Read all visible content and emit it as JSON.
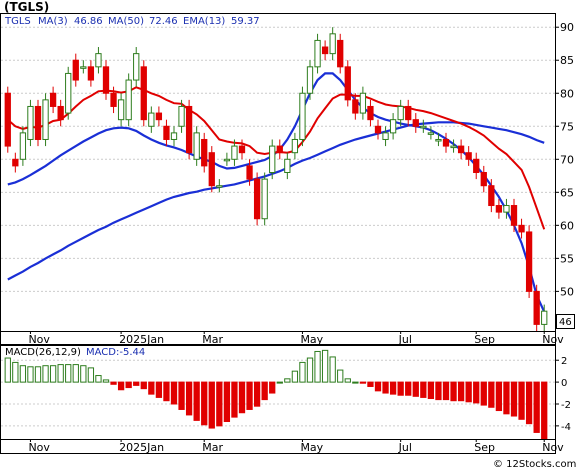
{
  "header": {
    "symbol_title": "(TGLS)",
    "legend_symbol": "TGLS",
    "legend_ma3": "MA(3)",
    "legend_ma3_val": "46.86",
    "legend_ma50": "MA(50)",
    "legend_ma50_val": "72.46",
    "legend_ema13": "EMA(13)",
    "legend_ema13_val": "59.37"
  },
  "macd_header": {
    "label": "MACD(26,12,9)",
    "value_label": "MACD:-5.44"
  },
  "watermark": "© 12Stocks.com",
  "colors": {
    "up": "#2e7d1e",
    "down": "#e00000",
    "ma_short": "#1a2fd6",
    "ma_long": "#1a2fd6",
    "ema": "#e00000",
    "grid": "#cccccc"
  },
  "chart_data": [
    {
      "type": "candlestick",
      "title": "(TGLS)",
      "x_ticks": [
        "Nov",
        "2025Jan",
        "Mar",
        "May",
        "Jul",
        "Sep",
        "Nov"
      ],
      "y_ticks": [
        50,
        55,
        60,
        65,
        70,
        75,
        80,
        85,
        90
      ],
      "ylim": [
        44,
        92
      ],
      "last_price_label": "46",
      "candles": [
        [
          80,
          72
        ],
        [
          70,
          69
        ],
        [
          70,
          74
        ],
        [
          73,
          78
        ],
        [
          78,
          73
        ],
        [
          73,
          79
        ],
        [
          80,
          78
        ],
        [
          78,
          76
        ],
        [
          77,
          83
        ],
        [
          85,
          82
        ],
        [
          84,
          84
        ],
        [
          84,
          82
        ],
        [
          84,
          86
        ],
        [
          84,
          80
        ],
        [
          80,
          78
        ],
        [
          76,
          79
        ],
        [
          76,
          82
        ],
        [
          82,
          86
        ],
        [
          84,
          76
        ],
        [
          75,
          77
        ],
        [
          77,
          76
        ],
        [
          75,
          73
        ],
        [
          73,
          74
        ],
        [
          75,
          78
        ],
        [
          78,
          71
        ],
        [
          70,
          74
        ],
        [
          73,
          69
        ],
        [
          71,
          66
        ],
        [
          66,
          66
        ],
        [
          70,
          70
        ],
        [
          70,
          72
        ],
        [
          72,
          71
        ],
        [
          69,
          67
        ],
        [
          67,
          61
        ],
        [
          61,
          67
        ],
        [
          68,
          72
        ],
        [
          72,
          71
        ],
        [
          68,
          70
        ],
        [
          71,
          73
        ],
        [
          73,
          80
        ],
        [
          80,
          84
        ],
        [
          84,
          88
        ],
        [
          87,
          86
        ],
        [
          86,
          89
        ],
        [
          88,
          84
        ],
        [
          84,
          79
        ],
        [
          79,
          77
        ],
        [
          77,
          80
        ],
        [
          78,
          76
        ],
        [
          75,
          74
        ],
        [
          73,
          74
        ],
        [
          74,
          76
        ],
        [
          76,
          78
        ],
        [
          78,
          76
        ],
        [
          76,
          75
        ],
        [
          75,
          75
        ],
        [
          74,
          74
        ],
        [
          73,
          73
        ],
        [
          73,
          72
        ],
        [
          72,
          72
        ],
        [
          72,
          71
        ],
        [
          71,
          70
        ],
        [
          70,
          68
        ],
        [
          68,
          66
        ],
        [
          66,
          63
        ],
        [
          63,
          62
        ],
        [
          62,
          63
        ],
        [
          63,
          60
        ],
        [
          60,
          59
        ],
        [
          59,
          50
        ],
        [
          50,
          45
        ],
        [
          45,
          47
        ]
      ],
      "ma_short": [
        66.2,
        66.5,
        67.0,
        67.6,
        68.3,
        69.0,
        69.8,
        70.6,
        71.3,
        72.0,
        72.7,
        73.3,
        73.9,
        74.4,
        74.7,
        74.8,
        74.7,
        74.3,
        73.6,
        73.0,
        72.5,
        72.1,
        71.8,
        71.4,
        70.9,
        70.4,
        70.0,
        69.6,
        69.0,
        68.6,
        68.7,
        69.0,
        69.3,
        69.6,
        69.9,
        70.5,
        71.5,
        73.0,
        75.0,
        77.5,
        80.0,
        82.0,
        83.0,
        83.0,
        82.0,
        80.5,
        79.0,
        77.8,
        77.0,
        76.4,
        76.0,
        75.7,
        75.4,
        75.2,
        75.0,
        74.8,
        74.4,
        73.8,
        73.1,
        72.3,
        71.4,
        70.3,
        69.0,
        67.6,
        66.0,
        64.3,
        62.3,
        60.0,
        57.3,
        53.7,
        49.4,
        46.9
      ],
      "ma_long": [
        51.8,
        52.4,
        53.0,
        53.7,
        54.3,
        55.0,
        55.6,
        56.2,
        56.9,
        57.5,
        58.1,
        58.7,
        59.3,
        59.8,
        60.4,
        60.9,
        61.4,
        61.9,
        62.4,
        62.9,
        63.4,
        63.9,
        64.3,
        64.6,
        64.9,
        65.1,
        65.4,
        65.6,
        65.8,
        66.0,
        66.2,
        66.5,
        66.8,
        67.1,
        67.4,
        67.8,
        68.2,
        68.7,
        69.3,
        69.8,
        70.2,
        70.7,
        71.2,
        71.7,
        72.2,
        72.6,
        73.0,
        73.3,
        73.6,
        73.9,
        74.2,
        74.5,
        74.8,
        75.1,
        75.3,
        75.4,
        75.5,
        75.6,
        75.6,
        75.6,
        75.5,
        75.4,
        75.2,
        75.0,
        74.8,
        74.6,
        74.4,
        74.1,
        73.8,
        73.4,
        72.9,
        72.5
      ],
      "ema": [
        76.0,
        75.0,
        74.6,
        74.9,
        74.8,
        75.2,
        75.8,
        76.0,
        76.9,
        78.0,
        79.0,
        79.6,
        80.3,
        80.4,
        80.3,
        80.1,
        80.3,
        80.9,
        80.5,
        80.0,
        79.6,
        79.0,
        78.5,
        78.4,
        77.5,
        76.8,
        75.8,
        74.4,
        73.0,
        72.7,
        72.5,
        72.4,
        72.0,
        71.0,
        70.8,
        71.0,
        71.1,
        71.0,
        71.3,
        72.6,
        74.2,
        76.2,
        77.7,
        79.2,
        79.8,
        79.8,
        79.6,
        79.6,
        79.2,
        78.7,
        78.3,
        78.1,
        78.0,
        77.8,
        77.5,
        77.3,
        77.0,
        76.6,
        76.2,
        75.8,
        75.4,
        74.9,
        74.3,
        73.6,
        72.6,
        71.6,
        70.8,
        69.6,
        68.4,
        65.8,
        62.6,
        59.4
      ]
    },
    {
      "type": "bar",
      "title": "MACD(26,12,9)",
      "x_ticks": [
        "Nov",
        "2025Jan",
        "Mar",
        "May",
        "Jul",
        "Sep",
        "Nov"
      ],
      "y_ticks": [
        -4,
        -2,
        0,
        2
      ],
      "ylim": [
        -5.2,
        3.3
      ],
      "values": [
        2.2,
        1.8,
        1.5,
        1.4,
        1.4,
        1.5,
        1.5,
        1.6,
        1.6,
        1.6,
        1.5,
        1.3,
        0.6,
        0.2,
        -0.2,
        -0.7,
        -0.5,
        -0.3,
        -0.6,
        -1.1,
        -1.4,
        -1.7,
        -2.0,
        -2.5,
        -3.0,
        -3.5,
        -3.9,
        -4.2,
        -4.0,
        -3.6,
        -3.2,
        -2.8,
        -2.5,
        -2.2,
        -1.6,
        -1.0,
        0.0,
        0.3,
        1.0,
        1.8,
        2.2,
        2.8,
        2.9,
        2.3,
        1.1,
        0.3,
        0.0,
        -0.1,
        -0.4,
        -0.8,
        -1.0,
        -1.1,
        -1.2,
        -1.2,
        -1.3,
        -1.4,
        -1.5,
        -1.6,
        -1.6,
        -1.7,
        -1.7,
        -1.8,
        -1.9,
        -2.1,
        -2.3,
        -2.6,
        -2.9,
        -3.1,
        -3.4,
        -3.8,
        -4.6,
        -5.4
      ]
    }
  ]
}
